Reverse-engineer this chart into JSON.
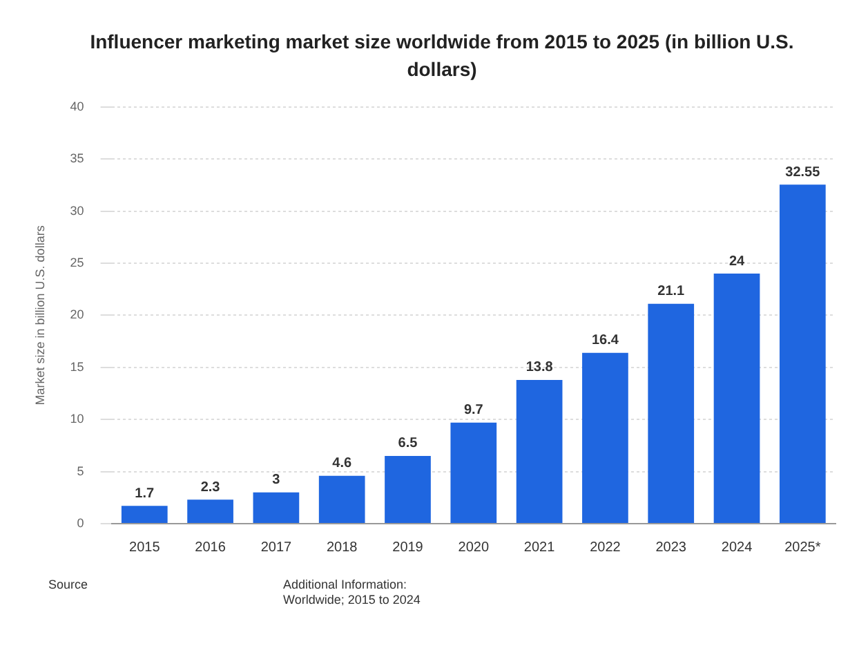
{
  "chart_data": {
    "type": "bar",
    "title": "Influencer marketing market size worldwide from 2015 to 2025 (in billion U.S. dollars)",
    "ylabel": "Market size in billion U.S. dollars",
    "categories": [
      "2015",
      "2016",
      "2017",
      "2018",
      "2019",
      "2020",
      "2021",
      "2022",
      "2023",
      "2024",
      "2025*"
    ],
    "values": [
      1.7,
      2.3,
      3,
      4.6,
      6.5,
      9.7,
      13.8,
      16.4,
      21.1,
      24,
      32.55
    ],
    "color": "#1f66e0",
    "ylim": [
      0,
      40
    ],
    "yticks": [
      0,
      5,
      10,
      15,
      20,
      25,
      30,
      35,
      40
    ],
    "grid": "y",
    "data_labels": true,
    "legend": false,
    "annotations": [
      "Source",
      "Additional Information:\nWorldwide; 2015 to 2024"
    ]
  }
}
